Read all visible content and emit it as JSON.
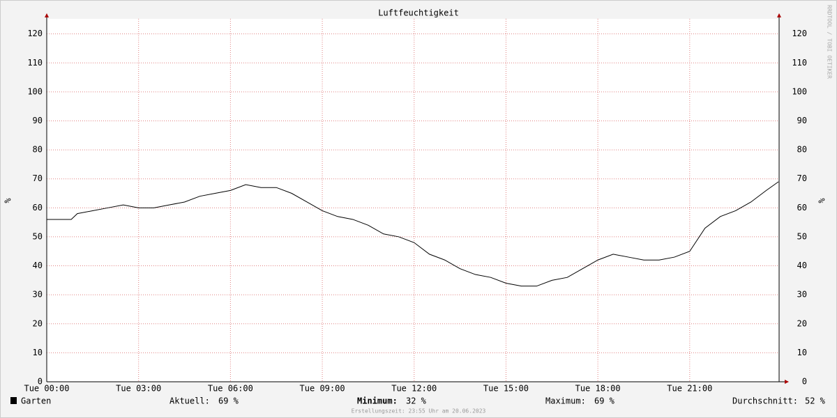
{
  "chart_data": {
    "type": "line",
    "title": "Luftfeuchtigkeit",
    "y_label": "%",
    "watermark": "RRDTOOL / TOBI OETIKER",
    "x": [
      0,
      0.5,
      0.8,
      1,
      1.5,
      2,
      2.5,
      3,
      3.5,
      4,
      4.5,
      5,
      5.5,
      6,
      6.5,
      7,
      7.5,
      8,
      8.5,
      9,
      9.5,
      10,
      10.5,
      11,
      11.5,
      12,
      12.5,
      13,
      13.5,
      14,
      14.5,
      15,
      15.5,
      16,
      16.5,
      17,
      17.5,
      18,
      18.5,
      19,
      19.5,
      20,
      20.5,
      21,
      21.5,
      22,
      22.5,
      23,
      23.5,
      23.9
    ],
    "series": [
      {
        "name": "Garten",
        "color": "#000000",
        "values": [
          56,
          56,
          56,
          58,
          59,
          60,
          61,
          60,
          60,
          61,
          62,
          64,
          65,
          66,
          68,
          67,
          67,
          65,
          62,
          59,
          57,
          56,
          54,
          51,
          50,
          48,
          44,
          42,
          39,
          37,
          36,
          34,
          33,
          33,
          35,
          36,
          39,
          42,
          44,
          43,
          42,
          42,
          43,
          45,
          53,
          57,
          59,
          62,
          66,
          69
        ]
      }
    ],
    "xlim": [
      0,
      23.92
    ],
    "xticks": [
      {
        "value": 0,
        "label": "Tue 00:00"
      },
      {
        "value": 3,
        "label": "Tue 03:00"
      },
      {
        "value": 6,
        "label": "Tue 06:00"
      },
      {
        "value": 9,
        "label": "Tue 09:00"
      },
      {
        "value": 12,
        "label": "Tue 12:00"
      },
      {
        "value": 15,
        "label": "Tue 15:00"
      },
      {
        "value": 18,
        "label": "Tue 18:00"
      },
      {
        "value": 21,
        "label": "Tue 21:00"
      }
    ],
    "ylim": [
      0,
      125.2
    ],
    "yticks": [
      0,
      10,
      20,
      30,
      40,
      50,
      60,
      70,
      80,
      90,
      100,
      110,
      120
    ],
    "grid": true,
    "stats": [
      {
        "label": "Aktuell:",
        "value": "69 %"
      },
      {
        "label": "Minimum:",
        "value": "32 %"
      },
      {
        "label": "Maximum:",
        "value": "69 %"
      },
      {
        "label": "Durchschnitt:",
        "value": "52 %"
      }
    ],
    "footer": "Erstellungszeit: 23:55 Uhr am 20.06.2023"
  }
}
